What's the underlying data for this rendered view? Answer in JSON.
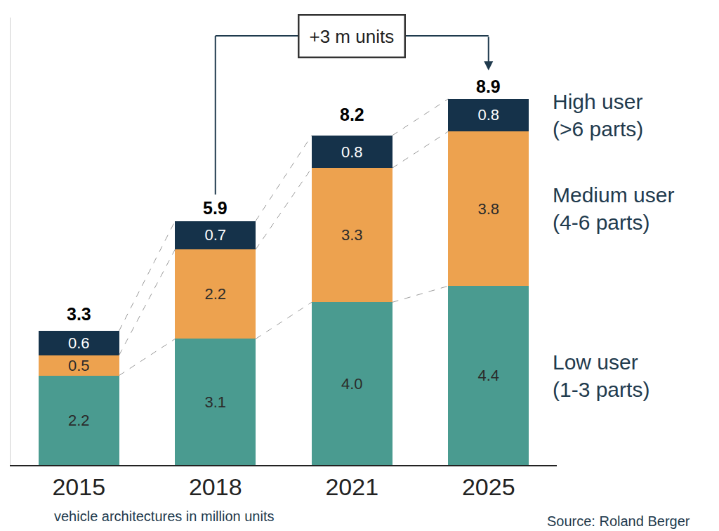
{
  "chart_data": {
    "type": "bar",
    "stacked": true,
    "data_labels": true,
    "tick_labels": "x",
    "grid": false,
    "categories": [
      "2015",
      "2018",
      "2021",
      "2025"
    ],
    "series": [
      {
        "name": "Low user (1-3 parts)",
        "color": "#4a9b90",
        "values": [
          2.2,
          3.1,
          4.0,
          4.4
        ],
        "value_labels": [
          "2.2",
          "3.1",
          "4.0",
          "4.4"
        ]
      },
      {
        "name": "Medium user (4-6 parts)",
        "color": "#eda24f",
        "values": [
          0.5,
          2.2,
          3.3,
          3.8
        ],
        "value_labels": [
          "0.5",
          "2.2",
          "3.3",
          "3.8"
        ]
      },
      {
        "name": "High user (>6 parts)",
        "color": "#15324a",
        "values": [
          0.6,
          0.7,
          0.8,
          0.8
        ],
        "value_labels": [
          "0.6",
          "0.7",
          "0.8",
          "0.8"
        ]
      }
    ],
    "totals": [
      3.3,
      5.9,
      8.2,
      8.9
    ],
    "ylim": [
      0,
      11
    ],
    "annotation": {
      "text": "+3 m units",
      "from": "2018",
      "to": "2025"
    },
    "caption": "vehicle architectures in million units",
    "source": "Source: Roland Berger"
  }
}
